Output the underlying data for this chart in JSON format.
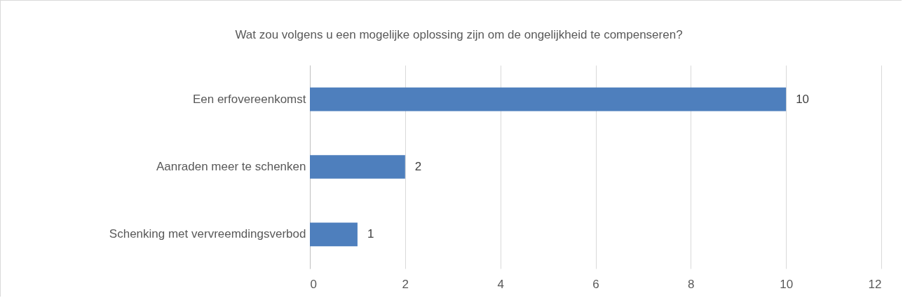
{
  "chart_data": {
    "type": "bar",
    "orientation": "horizontal",
    "title": "Wat zou volgens u een mogelijke oplossing zijn om de ongelijkheid te compenseren?",
    "categories": [
      "Een erfovereenkomst",
      "Aanraden meer te schenken",
      "Schenking met vervreemdingsverbod"
    ],
    "values": [
      10,
      2,
      1
    ],
    "color": "#4e7fbd",
    "xlim": [
      0,
      12
    ],
    "xticks": [
      0,
      2,
      4,
      6,
      8,
      10,
      12
    ],
    "grid": "x",
    "data_labels": true
  }
}
